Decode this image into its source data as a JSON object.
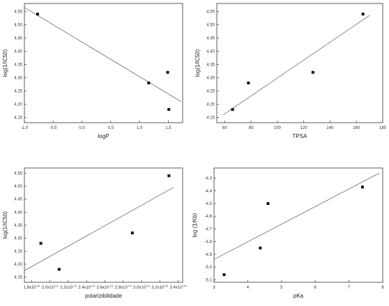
{
  "chart_data": [
    {
      "type": "scatter",
      "xlabel": "logP",
      "ylabel": "log(1/IC50)",
      "xlim": [
        -1.0,
        1.75
      ],
      "ylim": [
        4.13,
        4.58
      ],
      "x_ticks": [
        -1.0,
        -0.5,
        0.0,
        0.5,
        1.0,
        1.5
      ],
      "x_tick_labels": [
        "-1,0",
        "-0,5",
        "0,0",
        "0,5",
        "1,0",
        "1,5"
      ],
      "y_ticks": [
        4.15,
        4.2,
        4.25,
        4.3,
        4.35,
        4.4,
        4.45,
        4.5,
        4.55
      ],
      "y_tick_labels": [
        "4.15",
        "4.20",
        "4.25",
        "4.30",
        "4.35",
        "4.40",
        "4.45",
        "4.50",
        "4.55"
      ],
      "points": [
        {
          "x": -0.77,
          "y": 4.54
        },
        {
          "x": 1.16,
          "y": 4.28
        },
        {
          "x": 1.49,
          "y": 4.32
        },
        {
          "x": 1.51,
          "y": 4.18
        }
      ],
      "fit_line": {
        "x": [
          -1.0,
          1.72
        ],
        "y": [
          4.565,
          4.21
        ]
      },
      "grid": false,
      "legend": "none"
    },
    {
      "type": "scatter",
      "xlabel": "TPSA",
      "ylabel": "log(1/IC50)",
      "xlim": [
        54,
        180
      ],
      "ylim": [
        4.13,
        4.58
      ],
      "x_ticks": [
        60,
        80,
        100,
        120,
        140,
        160,
        180
      ],
      "x_tick_labels": [
        "60",
        "80",
        "100",
        "120",
        "140",
        "160",
        "180"
      ],
      "y_ticks": [
        4.15,
        4.2,
        4.25,
        4.3,
        4.35,
        4.4,
        4.45,
        4.5,
        4.55
      ],
      "y_tick_labels": [
        "4.15",
        "4.20",
        "4.25",
        "4.30",
        "4.35",
        "4.40",
        "4.45",
        "4.50",
        "4.55"
      ],
      "points": [
        {
          "x": 66,
          "y": 4.18
        },
        {
          "x": 78,
          "y": 4.28
        },
        {
          "x": 127,
          "y": 4.32
        },
        {
          "x": 165,
          "y": 4.54
        }
      ],
      "fit_line": {
        "x": [
          59,
          170
        ],
        "y": [
          4.16,
          4.535
        ]
      },
      "grid": false,
      "legend": "none"
    },
    {
      "type": "scatter",
      "xlabel": "polarizibilidade",
      "ylabel": "log(1/IC50)",
      "xlim": [
        1.72e-23,
        3.45e-23
      ],
      "ylim": [
        4.13,
        4.57
      ],
      "x_ticks": [
        1.8e-23,
        2e-23,
        2.2e-23,
        2.4e-23,
        2.6e-23,
        2.8e-23,
        3e-23,
        3.2e-23,
        3.4e-23
      ],
      "x_tick_mantissas": [
        "1.8x10",
        "2.0x10",
        "2.2x10",
        "2.4x10",
        "2.6x10",
        "2.8x10",
        "3.0x10",
        "3.2x10",
        "3.4x10"
      ],
      "x_tick_exponent": "-23",
      "y_ticks": [
        4.15,
        4.2,
        4.25,
        4.3,
        4.35,
        4.4,
        4.45,
        4.5,
        4.55
      ],
      "y_tick_labels": [
        "4.15",
        "4.20",
        "4.25",
        "4.30",
        "4.35",
        "4.40",
        "4.45",
        "4.50",
        "4.55"
      ],
      "points": [
        {
          "x": 1.9e-23,
          "y": 4.28
        },
        {
          "x": 2.1e-23,
          "y": 4.18
        },
        {
          "x": 2.9e-23,
          "y": 4.32
        },
        {
          "x": 3.3e-23,
          "y": 4.54
        }
      ],
      "fit_line": {
        "x": [
          1.72e-23,
          3.35e-23
        ],
        "y": [
          4.175,
          4.495
        ]
      },
      "grid": false,
      "legend": "none"
    },
    {
      "type": "scatter",
      "xlabel": "pKa",
      "ylabel": "log (1/Kb)",
      "xlim": [
        3,
        8
      ],
      "ylim": [
        -5.12,
        -4.22
      ],
      "x_ticks": [
        3,
        4,
        5,
        6,
        7,
        8
      ],
      "x_tick_labels": [
        "3",
        "4",
        "5",
        "6",
        "7",
        "8"
      ],
      "y_ticks": [
        -5.1,
        -5.0,
        -4.9,
        -4.8,
        -4.7,
        -4.6,
        -4.5,
        -4.4,
        -4.3
      ],
      "y_tick_labels": [
        "-5.1",
        "-5.0",
        "-4.9",
        "-4.8",
        "-4.7",
        "-4.6",
        "-4.5",
        "-4.4",
        "-4.3"
      ],
      "points": [
        {
          "x": 3.3,
          "y": -5.06
        },
        {
          "x": 4.37,
          "y": -4.85
        },
        {
          "x": 4.6,
          "y": -4.5
        },
        {
          "x": 7.4,
          "y": -4.37
        }
      ],
      "fit_line": {
        "x": [
          3.0,
          7.9
        ],
        "y": [
          -4.94,
          -4.26
        ]
      },
      "grid": false,
      "legend": "none"
    }
  ]
}
